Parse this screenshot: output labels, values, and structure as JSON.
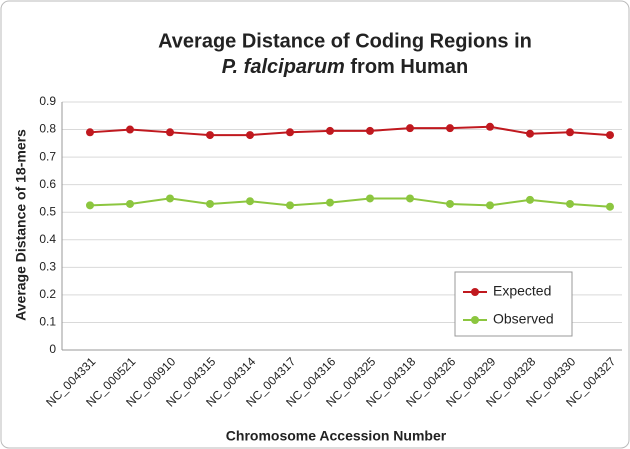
{
  "chart_data": {
    "type": "line",
    "title": [
      "Average Distance of Coding Regions in",
      "P. falciparum",
      "from Human"
    ],
    "xlabel": "Chromosome Accession Number",
    "ylabel": "Average Distance of 18-mers",
    "categories": [
      "NC_004331",
      "NC_000521",
      "NC_000910",
      "NC_004315",
      "NC_004314",
      "NC_004317",
      "NC_004316",
      "NC_004325",
      "NC_004318",
      "NC_004326",
      "NC_004329",
      "NC_004328",
      "NC_004330",
      "NC_004327"
    ],
    "series": [
      {
        "name": "Expected",
        "color": "#c0191f",
        "values": [
          0.79,
          0.8,
          0.79,
          0.78,
          0.78,
          0.79,
          0.795,
          0.795,
          0.805,
          0.805,
          0.81,
          0.785,
          0.79,
          0.78
        ]
      },
      {
        "name": "Observed",
        "color": "#8cc63f",
        "values": [
          0.525,
          0.53,
          0.55,
          0.53,
          0.54,
          0.525,
          0.535,
          0.55,
          0.55,
          0.53,
          0.525,
          0.545,
          0.53,
          0.52
        ]
      }
    ],
    "ylim": [
      0,
      0.9
    ],
    "yticks": [
      0,
      0.1,
      0.2,
      0.3,
      0.4,
      0.5,
      0.6,
      0.7,
      0.8,
      0.9
    ],
    "grid": true,
    "legend": "lower right"
  }
}
